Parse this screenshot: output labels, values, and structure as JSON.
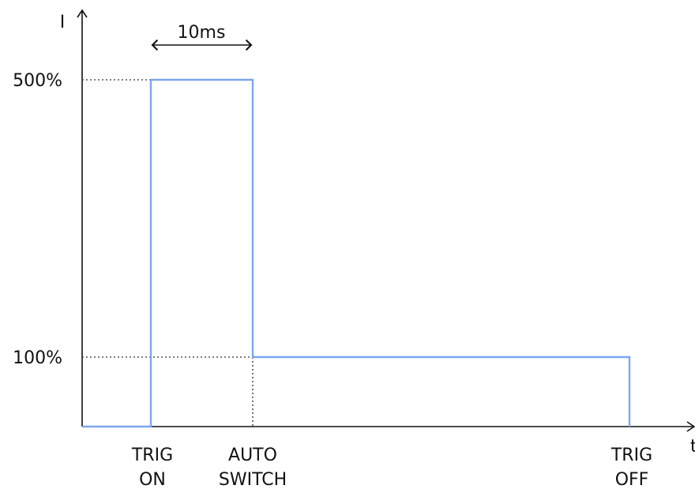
{
  "axes": {
    "y_label": "I",
    "x_label": "t"
  },
  "levels": {
    "high": "500%",
    "low": "100%"
  },
  "duration": {
    "label": "10ms"
  },
  "events": {
    "trig_on": [
      "TRIG",
      "ON"
    ],
    "auto_switch": [
      "AUTO",
      "SWITCH"
    ],
    "trig_off": [
      "TRIG",
      "OFF"
    ]
  },
  "colors": {
    "waveform": "#7aa7f0",
    "axis": "#111111",
    "guide": "#555555"
  }
}
